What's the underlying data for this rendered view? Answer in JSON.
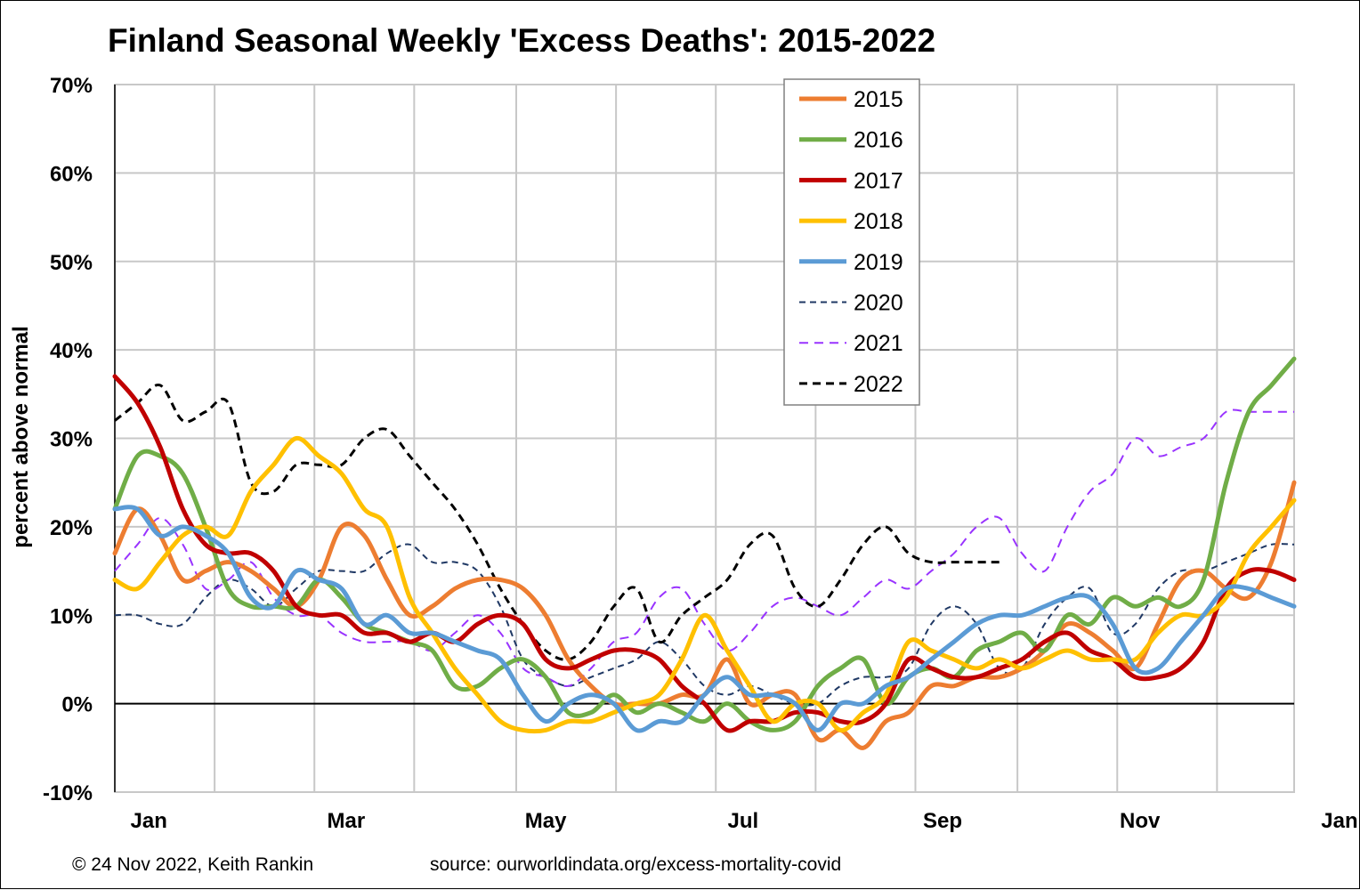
{
  "chart_data": {
    "type": "line",
    "title": "Finland Seasonal Weekly 'Excess Deaths': 2015-2022",
    "ylabel": "percent above normal",
    "xlabel": "",
    "ylim": [
      -10,
      70
    ],
    "y_ticks": [
      "-10%",
      "0%",
      "10%",
      "20%",
      "30%",
      "40%",
      "50%",
      "60%",
      "70%"
    ],
    "y_tick_values": [
      -10,
      0,
      10,
      20,
      30,
      40,
      50,
      60,
      70
    ],
    "x_range_weeks": [
      1,
      53
    ],
    "month_labels": [
      "Jan",
      "Mar",
      "May",
      "Jul",
      "Sep",
      "Nov",
      "Jan"
    ],
    "month_label_weeks": [
      2.5,
      11.2,
      20,
      28.7,
      37.5,
      46.2,
      55
    ],
    "month_grid_weeks": [
      5.4,
      9.8,
      14.2,
      18.7,
      23.1,
      27.5,
      31.9,
      36.3,
      40.8,
      45.2,
      49.6
    ],
    "grid": true,
    "legend_position": "top-center",
    "series": [
      {
        "name": "2015",
        "color": "#ED7D31",
        "width": 5,
        "dash": "",
        "x": [
          1,
          2,
          3,
          4,
          5,
          6,
          7,
          8,
          9,
          10,
          11,
          12,
          13,
          14,
          15,
          16,
          17,
          18,
          19,
          20,
          21,
          22,
          23,
          24,
          25,
          26,
          27,
          28,
          29,
          30,
          31,
          32,
          33,
          34,
          35,
          36,
          37,
          38,
          39,
          40,
          41,
          42,
          43,
          44,
          45,
          46,
          47,
          48,
          49,
          50,
          51,
          52,
          53
        ],
        "y": [
          17,
          22,
          19,
          14,
          15,
          16,
          15,
          13,
          11,
          14,
          20,
          19,
          14,
          10,
          11,
          13,
          14,
          14,
          13,
          10,
          5,
          2,
          0,
          0,
          0,
          1,
          1,
          5,
          0,
          1,
          1,
          -4,
          -3,
          -5,
          -2,
          -1,
          2,
          2,
          3,
          3,
          4,
          6,
          9,
          8,
          6,
          4,
          9,
          14,
          15,
          13,
          12,
          16,
          25
        ]
      },
      {
        "name": "2016",
        "color": "#70AD47",
        "width": 5,
        "dash": "",
        "x": [
          1,
          2,
          3,
          4,
          5,
          6,
          7,
          8,
          9,
          10,
          11,
          12,
          13,
          14,
          15,
          16,
          17,
          18,
          19,
          20,
          21,
          22,
          23,
          24,
          25,
          26,
          27,
          28,
          29,
          30,
          31,
          32,
          33,
          34,
          35,
          36,
          37,
          38,
          39,
          40,
          41,
          42,
          43,
          44,
          45,
          46,
          47,
          48,
          49,
          50,
          51,
          52,
          53
        ],
        "y": [
          22,
          28,
          28,
          26,
          20,
          13,
          11,
          11,
          11,
          14,
          12,
          9,
          8,
          7,
          6,
          2,
          2,
          4,
          5,
          3,
          -1,
          -1,
          1,
          -1,
          0,
          -1,
          -2,
          0,
          -2,
          -3,
          -2,
          2,
          4,
          5,
          0,
          3,
          4,
          3,
          6,
          7,
          8,
          6,
          10,
          9,
          12,
          11,
          12,
          11,
          14,
          25,
          33,
          36,
          39
        ]
      },
      {
        "name": "2017",
        "color": "#C00000",
        "width": 5,
        "dash": "",
        "x": [
          1,
          2,
          3,
          4,
          5,
          6,
          7,
          8,
          9,
          10,
          11,
          12,
          13,
          14,
          15,
          16,
          17,
          18,
          19,
          20,
          21,
          22,
          23,
          24,
          25,
          26,
          27,
          28,
          29,
          30,
          31,
          32,
          33,
          34,
          35,
          36,
          37,
          38,
          39,
          40,
          41,
          42,
          43,
          44,
          45,
          46,
          47,
          48,
          49,
          50,
          51,
          52,
          53
        ],
        "y": [
          37,
          34,
          29,
          22,
          18,
          17,
          17,
          15,
          11,
          10,
          10,
          8,
          8,
          7,
          8,
          7,
          9,
          10,
          9,
          5,
          4,
          5,
          6,
          6,
          5,
          2,
          0,
          -3,
          -2,
          -2,
          -1,
          -1,
          -2,
          -2,
          0,
          5,
          4,
          3,
          3,
          4,
          5,
          7,
          8,
          6,
          5,
          3,
          3,
          4,
          7,
          13,
          15,
          15,
          14
        ]
      },
      {
        "name": "2018",
        "color": "#FFC000",
        "width": 5,
        "dash": "",
        "x": [
          1,
          2,
          3,
          4,
          5,
          6,
          7,
          8,
          9,
          10,
          11,
          12,
          13,
          14,
          15,
          16,
          17,
          18,
          19,
          20,
          21,
          22,
          23,
          24,
          25,
          26,
          27,
          28,
          29,
          30,
          31,
          32,
          33,
          34,
          35,
          36,
          37,
          38,
          39,
          40,
          41,
          42,
          43,
          44,
          45,
          46,
          47,
          48,
          49,
          50,
          51,
          52,
          53
        ],
        "y": [
          14,
          13,
          16,
          19,
          20,
          19,
          24,
          27,
          30,
          28,
          26,
          22,
          20,
          12,
          8,
          4,
          1,
          -2,
          -3,
          -3,
          -2,
          -2,
          -1,
          0,
          1,
          5,
          10,
          6,
          2,
          -2,
          0,
          0,
          -3,
          -1,
          1,
          7,
          6,
          5,
          4,
          5,
          4,
          5,
          6,
          5,
          5,
          5,
          8,
          10,
          10,
          12,
          17,
          20,
          23
        ]
      },
      {
        "name": "2019",
        "color": "#5B9BD5",
        "width": 5,
        "dash": "",
        "x": [
          1,
          2,
          3,
          4,
          5,
          6,
          7,
          8,
          9,
          10,
          11,
          12,
          13,
          14,
          15,
          16,
          17,
          18,
          19,
          20,
          21,
          22,
          23,
          24,
          25,
          26,
          27,
          28,
          29,
          30,
          31,
          32,
          33,
          34,
          35,
          36,
          37,
          38,
          39,
          40,
          41,
          42,
          43,
          44,
          45,
          46,
          47,
          48,
          49,
          50,
          51,
          52,
          53
        ],
        "y": [
          22,
          22,
          19,
          20,
          19,
          17,
          12,
          11,
          15,
          14,
          13,
          9,
          10,
          8,
          8,
          7,
          6,
          5,
          1,
          -2,
          0,
          1,
          0,
          -3,
          -2,
          -2,
          1,
          3,
          1,
          1,
          0,
          -3,
          0,
          0,
          2,
          3,
          5,
          7,
          9,
          10,
          10,
          11,
          12,
          12,
          9,
          4,
          4,
          7,
          10,
          13,
          13,
          12,
          11
        ]
      },
      {
        "name": "2020",
        "color": "#1F3864",
        "width": 2,
        "dash": "7,5",
        "x": [
          1,
          2,
          3,
          4,
          5,
          6,
          7,
          8,
          9,
          10,
          11,
          12,
          13,
          14,
          15,
          16,
          17,
          18,
          19,
          20,
          21,
          22,
          23,
          24,
          25,
          26,
          27,
          28,
          29,
          30,
          31,
          32,
          33,
          34,
          35,
          36,
          37,
          38,
          39,
          40,
          41,
          42,
          43,
          44,
          45,
          46,
          47,
          48,
          49,
          50,
          51,
          52,
          53
        ],
        "y": [
          10,
          10,
          9,
          9,
          12,
          14,
          13,
          11,
          13,
          15,
          15,
          15,
          17,
          18,
          16,
          16,
          15,
          11,
          5,
          3,
          2,
          3,
          4,
          5,
          7,
          5,
          2,
          1,
          2,
          1,
          0,
          0,
          2,
          3,
          3,
          4,
          9,
          11,
          9,
          4,
          4,
          9,
          12,
          13,
          8,
          9,
          13,
          15,
          15,
          16,
          17,
          18,
          18
        ]
      },
      {
        "name": "2021",
        "color": "#9933FF",
        "width": 2,
        "dash": "10,7",
        "x": [
          1,
          2,
          3,
          4,
          5,
          6,
          7,
          8,
          9,
          10,
          11,
          12,
          13,
          14,
          15,
          16,
          17,
          18,
          19,
          20,
          21,
          22,
          23,
          24,
          25,
          26,
          27,
          28,
          29,
          30,
          31,
          32,
          33,
          34,
          35,
          36,
          37,
          38,
          39,
          40,
          41,
          42,
          43,
          44,
          45,
          46,
          47,
          48,
          49,
          50,
          51,
          52,
          53
        ],
        "y": [
          15,
          18,
          21,
          18,
          13,
          14,
          16,
          12,
          10,
          10,
          8,
          7,
          7,
          7,
          6,
          8,
          10,
          8,
          4,
          3,
          2,
          4,
          7,
          8,
          12,
          13,
          9,
          6,
          8,
          11,
          12,
          11,
          10,
          12,
          14,
          13,
          15,
          17,
          20,
          21,
          17,
          15,
          20,
          24,
          26,
          30,
          28,
          29,
          30,
          33,
          33,
          33,
          33
        ]
      },
      {
        "name": "2022",
        "color": "#000000",
        "width": 3,
        "dash": "9,6",
        "x": [
          1,
          2,
          3,
          4,
          5,
          6,
          7,
          8,
          9,
          10,
          11,
          12,
          13,
          14,
          15,
          16,
          17,
          18,
          19,
          20,
          21,
          22,
          23,
          24,
          25,
          26,
          27,
          28,
          29,
          30,
          31,
          32,
          33,
          34,
          35,
          36,
          37,
          38,
          39,
          40
        ],
        "y": [
          32,
          34,
          36,
          32,
          33,
          34,
          25,
          24,
          27,
          27,
          27,
          30,
          31,
          28,
          25,
          22,
          18,
          13,
          9,
          6,
          5,
          7,
          11,
          13,
          7,
          10,
          12,
          14,
          18,
          19,
          13,
          11,
          14,
          18,
          20,
          17,
          16,
          16,
          16,
          16
        ]
      }
    ]
  },
  "footer": {
    "copyright": "© 24 Nov 2022, Keith Rankin",
    "source": "source: ourworldindata.org/excess-mortality-covid"
  }
}
